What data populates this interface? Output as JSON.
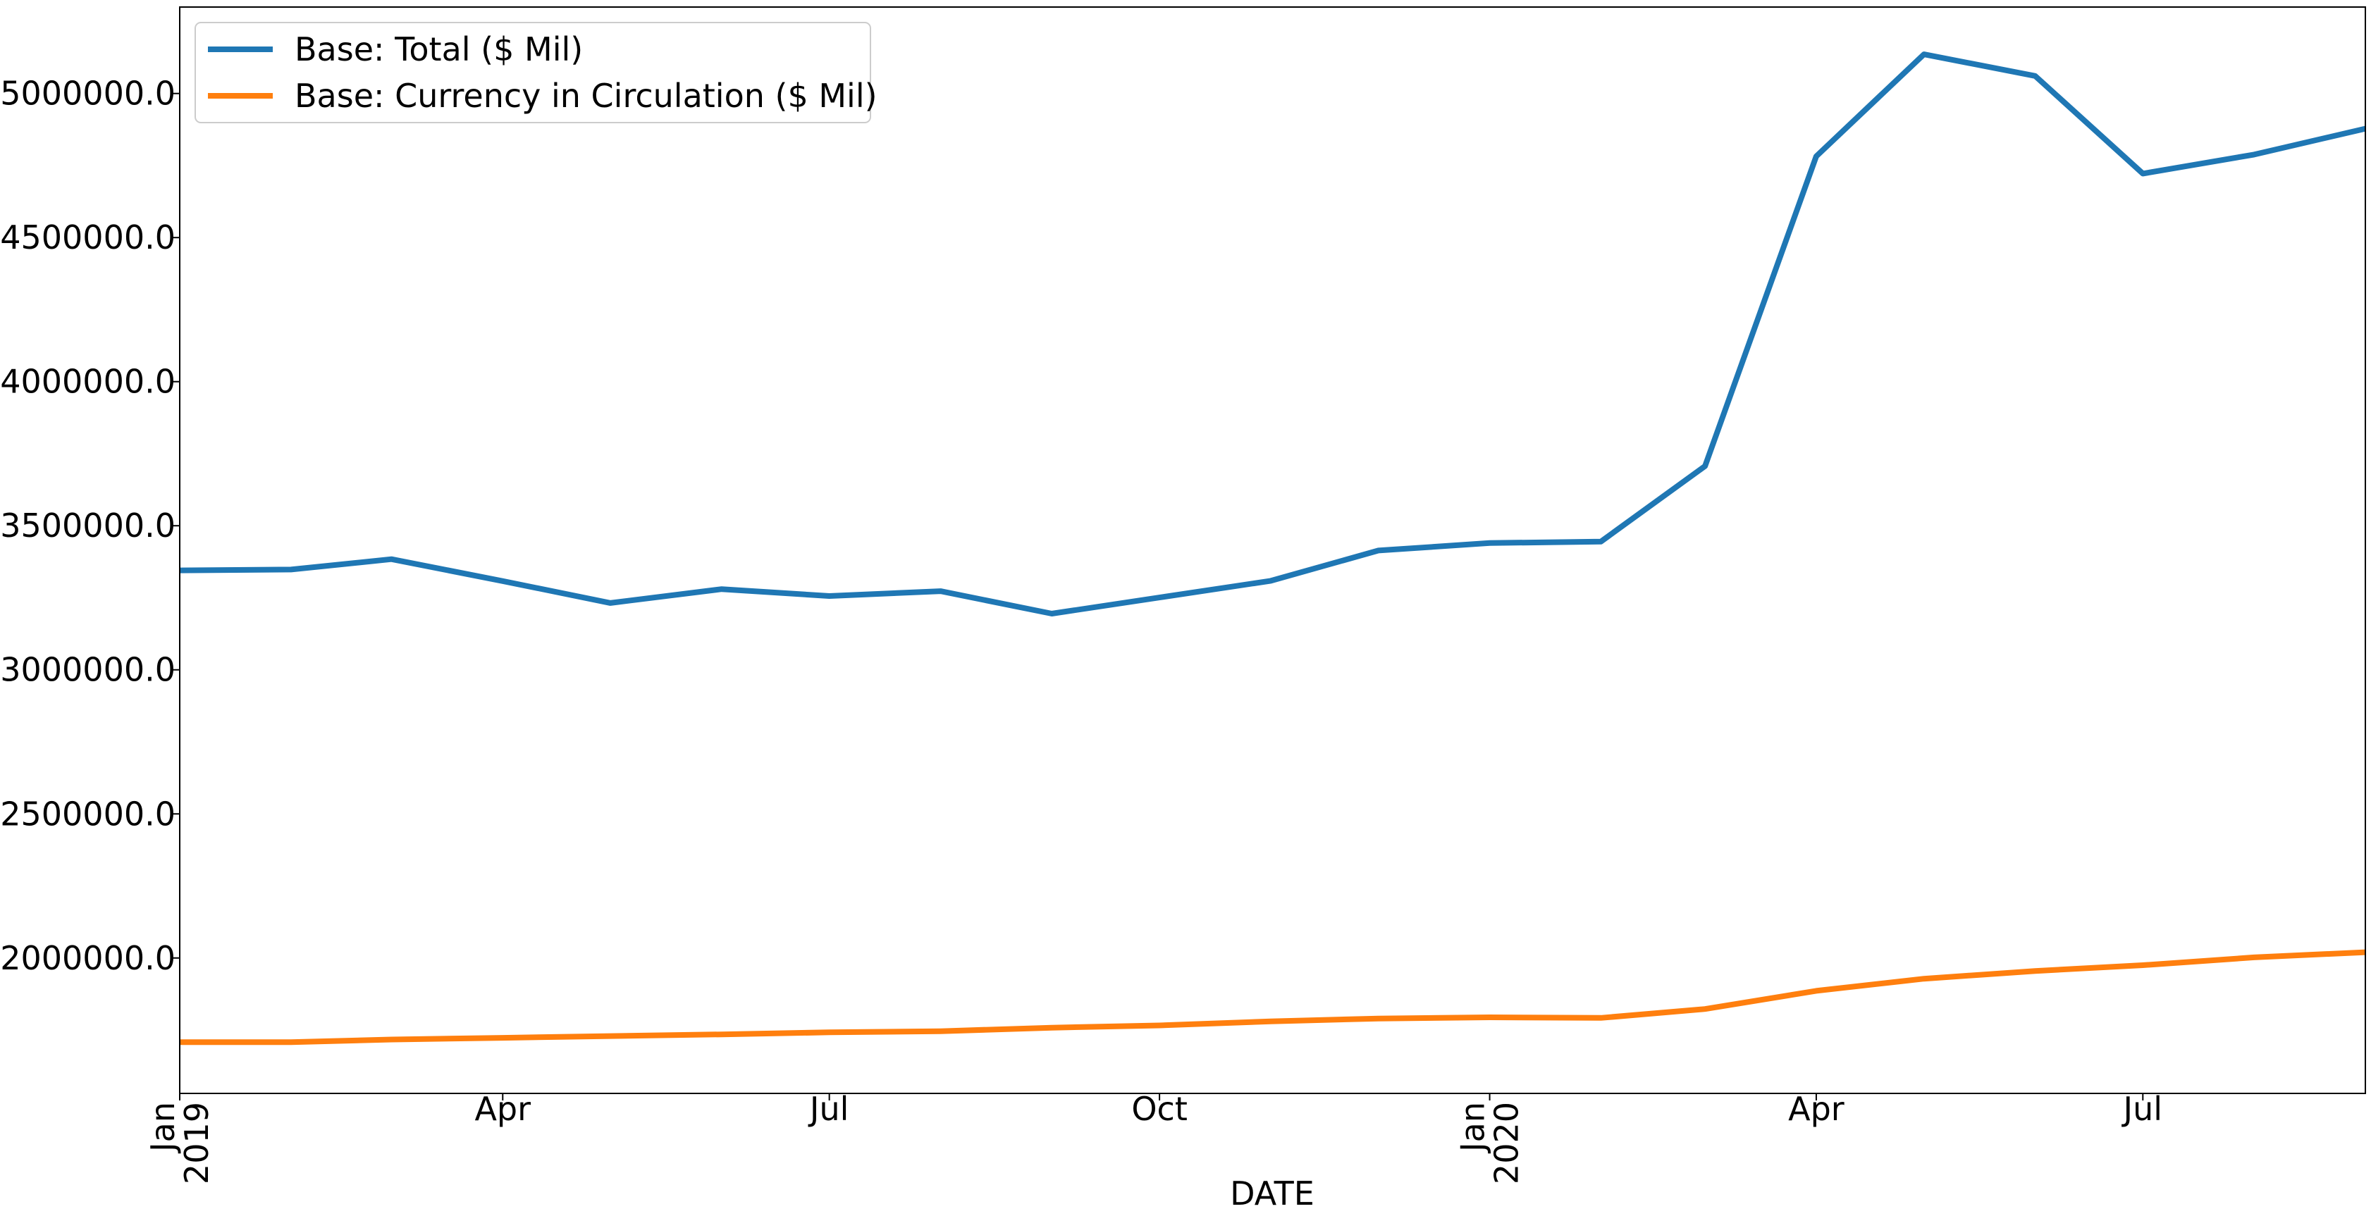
{
  "chart_data": {
    "type": "line",
    "xlabel": "DATE",
    "ylabel": "",
    "ylim": [
      1530000,
      5300000
    ],
    "xlim": [
      "2019-01-01",
      "2020-09-01"
    ],
    "grid": false,
    "legend_position": "top-left",
    "x": [
      "2019-01-01",
      "2019-02-01",
      "2019-03-01",
      "2019-04-01",
      "2019-05-01",
      "2019-06-01",
      "2019-07-01",
      "2019-08-01",
      "2019-09-01",
      "2019-10-01",
      "2019-11-01",
      "2019-12-01",
      "2020-01-01",
      "2020-02-01",
      "2020-03-01",
      "2020-04-01",
      "2020-05-01",
      "2020-06-01",
      "2020-07-01",
      "2020-08-01",
      "2020-09-01"
    ],
    "series": [
      {
        "name": "Base: Total ($ Mil)",
        "color": "#1f77b4",
        "values": [
          3345000,
          3348000,
          3384000,
          3308000,
          3232000,
          3280000,
          3256000,
          3273000,
          3195000,
          3251000,
          3309000,
          3414000,
          3440000,
          3445000,
          3707000,
          4782000,
          5136000,
          5061000,
          4722000,
          4788000,
          4878000
        ]
      },
      {
        "name": "Base: Currency in Circulation ($ Mil)",
        "color": "#ff7f0e",
        "values": [
          1708000,
          1708000,
          1717000,
          1723000,
          1729000,
          1735000,
          1742000,
          1746000,
          1758000,
          1766000,
          1780000,
          1790000,
          1794000,
          1792000,
          1823000,
          1886000,
          1928000,
          1955000,
          1975000,
          2002000,
          2020000
        ]
      }
    ],
    "y_ticks": [
      {
        "value": 2000000,
        "label": "2000000.0"
      },
      {
        "value": 2500000,
        "label": "2500000.0"
      },
      {
        "value": 3000000,
        "label": "3000000.0"
      },
      {
        "value": 3500000,
        "label": "3500000.0"
      },
      {
        "value": 4000000,
        "label": "4000000.0"
      },
      {
        "value": 4500000,
        "label": "4500000.0"
      },
      {
        "value": 5000000,
        "label": "5000000.0"
      }
    ],
    "x_ticks": [
      {
        "date": "2019-01-01",
        "label": "Jan\n2019",
        "major": true
      },
      {
        "date": "2019-04-01",
        "label": "Apr",
        "major": false
      },
      {
        "date": "2019-07-01",
        "label": "Jul",
        "major": false
      },
      {
        "date": "2019-10-01",
        "label": "Oct",
        "major": false
      },
      {
        "date": "2020-01-01",
        "label": "Jan\n2020",
        "major": true
      },
      {
        "date": "2020-04-01",
        "label": "Apr",
        "major": false
      },
      {
        "date": "2020-07-01",
        "label": "Jul",
        "major": false
      }
    ]
  }
}
